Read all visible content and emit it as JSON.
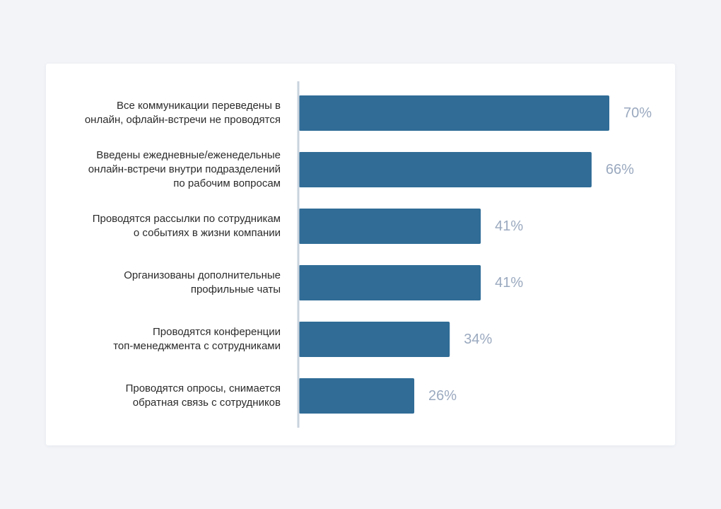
{
  "chart_data": {
    "type": "bar",
    "orientation": "horizontal",
    "categories": [
      "Все коммуникации переведены в\nонлайн, офлайн-встречи не проводятся",
      "Введены ежедневные/еженедельные\nонлайн-встречи внутри подразделений\nпо рабочим вопросам",
      "Проводятся рассылки по сотрудникам\nо событиях в жизни компании",
      "Организованы дополнительные\nпрофильные чаты",
      "Проводятся конференции\nтоп-менеджмента с сотрудниками",
      "Проводятся опросы, снимается\nобратная связь с сотрудников"
    ],
    "values": [
      70,
      66,
      41,
      41,
      34,
      26
    ],
    "value_labels": [
      "70%",
      "66%",
      "41%",
      "41%",
      "34%",
      "26%"
    ],
    "xlim": [
      0,
      70
    ],
    "grid": false,
    "legend": "none",
    "colors": {
      "bar": "#306c96",
      "value_label": "#9aa9bf",
      "axis_line": "#c9d3de",
      "category_label": "#2b2b2b"
    }
  }
}
